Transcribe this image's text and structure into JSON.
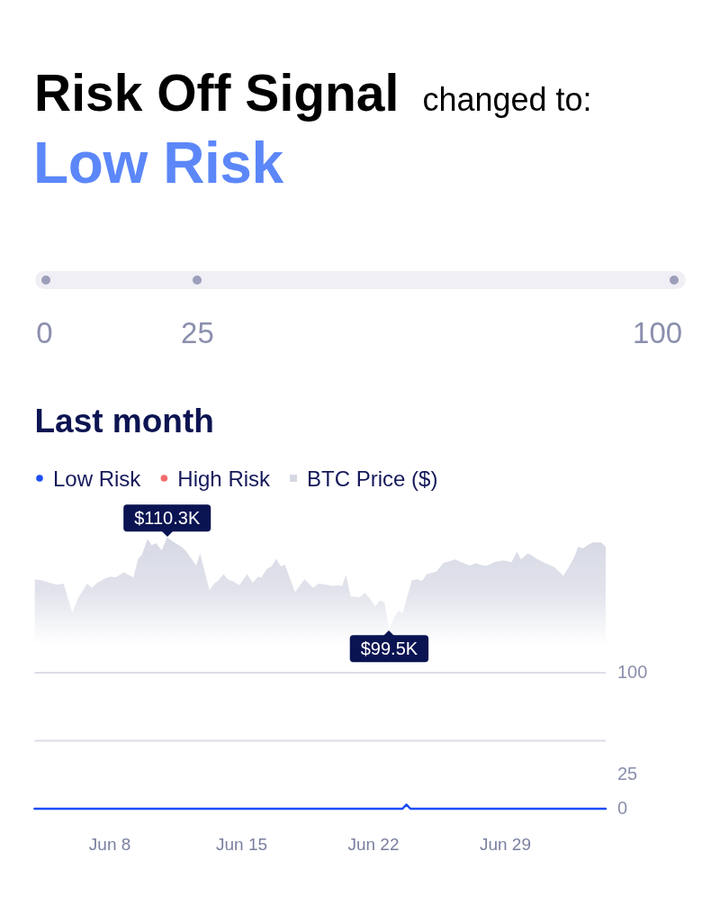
{
  "chart_data": [
    {
      "type": "other",
      "title": "Risk Off Signal",
      "subtitle": "changed to:",
      "annotations": [
        "Low Risk",
        "0",
        "25",
        "100"
      ]
    },
    {
      "type": "line",
      "title": "Last month",
      "legend": "top left",
      "xlim": [
        "--06-04T00:00",
        "--07-04T08:00"
      ],
      "xticks": [
        {
          "value": "--06-08",
          "label": "Jun 8"
        },
        {
          "value": "--06-15",
          "label": "Jun 15"
        },
        {
          "value": "--06-22",
          "label": "Jun 22"
        },
        {
          "value": "--06-29",
          "label": "Jun 29"
        }
      ],
      "ylim": [
        0,
        100
      ],
      "yticks": [
        0,
        25,
        100
      ],
      "ref_lines": [
        {
          "axis": "y",
          "value": 50,
          "color": "#dcdde8"
        },
        {
          "axis": "y",
          "value": 100,
          "color": "#dcdde8"
        }
      ],
      "series": [
        {
          "name": "Low Risk",
          "color": "#1d4ef5",
          "x": [
            "--06-04T00:00",
            "--06-23T13:00",
            "--06-23T18:00",
            "--06-23T23:00",
            "--07-04T08:00"
          ],
          "values": [
            0,
            0,
            3,
            0,
            0
          ]
        },
        {
          "name": "High Risk",
          "color": "#f36b6b"
        },
        {
          "name": "BTC Price ($)",
          "type": "area",
          "color": "#d6d8e4",
          "axis": "y2",
          "x": [
            "--06-04T00:00",
            "--06-04T08:00",
            "--06-04T15:00",
            "--06-05T03:00",
            "--06-05T08:00",
            "--06-05T13:00",
            "--06-06T00:00",
            "--06-06T07:00",
            "--06-06T19:00",
            "--06-07T01:00",
            "--06-07T08:00",
            "--06-07T18:00",
            "--06-08T01:00",
            "--06-08T07:00",
            "--06-08T18:00",
            "--06-09T06:00",
            "--06-09T12:00",
            "--06-09T17:00",
            "--06-10T00:00",
            "--06-10T05:00",
            "--06-10T11:00",
            "--06-10T18:00",
            "--06-11T01:00",
            "--06-11T10:00",
            "--06-11T19:00",
            "--06-12T01:00",
            "--06-12T14:00",
            "--06-12T19:00",
            "--06-13T07:00",
            "--06-13T13:00",
            "--06-13T18:00",
            "--06-14T01:00",
            "--06-14T06:00",
            "--06-14T14:00",
            "--06-14T21:00",
            "--06-15T07:00",
            "--06-15T14:00",
            "--06-15T21:00",
            "--06-16T01:00",
            "--06-16T08:00",
            "--06-16T14:00",
            "--06-16T20:00",
            "--06-17T02:00",
            "--06-17T07:00",
            "--06-17T20:00",
            "--06-18T08:00",
            "--06-18T19:00",
            "--06-19T02:00",
            "--06-19T11:00",
            "--06-19T20:00",
            "--06-20T04:00",
            "--06-20T08:00",
            "--06-20T13:00",
            "--06-20T19:00",
            "--06-21T06:00",
            "--06-21T13:00",
            "--06-21T20:00",
            "--06-22T02:00",
            "--06-22T08:00",
            "--06-22T14:00",
            "--06-22T20:00",
            "--06-23T02:00",
            "--06-23T08:00",
            "--06-23T13:00",
            "--06-24T01:00",
            "--06-24T07:00",
            "--06-24T14:00",
            "--06-24T20:00",
            "--06-25T08:00",
            "--06-25T17:00",
            "--06-26T01:00",
            "--06-26T08:00",
            "--06-26T16:00",
            "--06-27T03:00",
            "--06-27T10:00",
            "--06-27T19:00",
            "--06-28T01:00",
            "--06-28T10:00",
            "--06-28T22:00",
            "--06-29T08:00",
            "--06-29T15:00",
            "--06-29T20:00",
            "--06-30T04:00",
            "--06-30T08:00",
            "--06-30T16:00",
            "--07-01T03:00",
            "--07-01T15:00",
            "--07-02T02:00",
            "--07-02T10:00",
            "--07-02T16:00",
            "--07-02T21:00",
            "--07-03T03:00",
            "--07-03T11:00",
            "--07-03T16:00",
            "--07-04T02:00",
            "--07-04T08:00"
          ],
          "values": [
            105.4,
            105.3,
            105.1,
            104.8,
            104.8,
            104.9,
            101.5,
            103.1,
            104.9,
            104.4,
            105.0,
            105.5,
            105.7,
            105.6,
            106.2,
            105.6,
            107.8,
            108.3,
            110.1,
            109.4,
            109.6,
            108.8,
            110.3,
            109.7,
            109.2,
            108.7,
            107.0,
            108.4,
            104.1,
            104.9,
            105.2,
            106.0,
            105.4,
            105.1,
            104.7,
            106.0,
            105.0,
            105.7,
            105.6,
            106.6,
            106.9,
            107.8,
            106.9,
            107.1,
            103.9,
            105.4,
            104.4,
            104.9,
            104.8,
            104.6,
            104.7,
            104.6,
            105.9,
            103.4,
            103.3,
            103.8,
            103.1,
            102.2,
            102.9,
            102.7,
            99.5,
            100.9,
            101.7,
            101.4,
            105.3,
            105.4,
            105.2,
            106.0,
            106.3,
            107.3,
            107.5,
            107.7,
            107.4,
            107.0,
            107.3,
            107.0,
            107.0,
            107.4,
            107.6,
            107.4,
            108.6,
            107.7,
            108.4,
            108.3,
            107.8,
            107.3,
            106.8,
            105.8,
            107.0,
            108.0,
            109.2,
            109.0,
            109.5,
            109.7,
            109.7,
            109.2
          ],
          "value_labels": [
            null,
            null,
            null,
            null,
            null,
            null,
            null,
            null,
            null,
            null,
            null,
            null,
            null,
            null,
            null,
            null,
            null,
            null,
            null,
            null,
            null,
            null,
            "$110.3K",
            null,
            null,
            null,
            null,
            null,
            null,
            null,
            null,
            null,
            null,
            null,
            null,
            null,
            null,
            null,
            null,
            null,
            null,
            null,
            null,
            null,
            null,
            null,
            null,
            null,
            null,
            null,
            null,
            null,
            null,
            null,
            null,
            null,
            null,
            null,
            null,
            null,
            "$99.5K",
            null,
            null,
            null,
            null,
            null,
            null,
            null,
            null,
            null,
            null,
            null,
            null,
            null,
            null,
            null,
            null,
            null,
            null,
            null,
            null,
            null,
            null,
            null,
            null,
            null,
            null,
            null,
            null,
            null,
            null,
            null,
            null,
            null,
            null,
            null
          ]
        }
      ]
    }
  ]
}
